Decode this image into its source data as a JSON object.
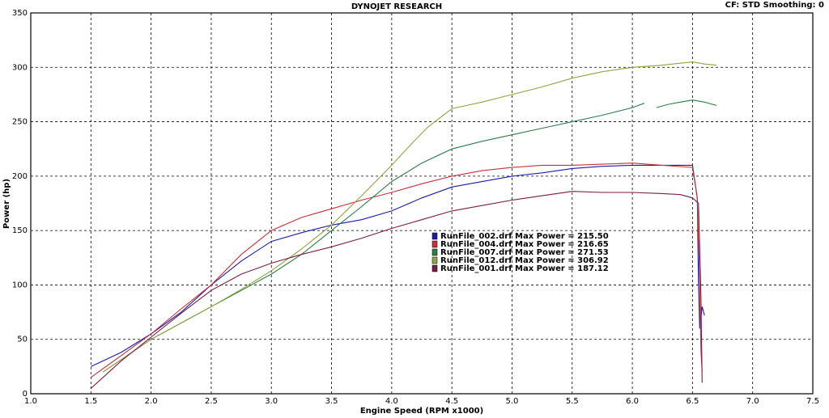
{
  "chart_data": {
    "type": "line",
    "title": "DYNOJET RESEARCH",
    "subtitle": "CF: STD  Smoothing: 0",
    "x_label": "Engine Speed (RPM x1000)",
    "y_label": "Power (hp)",
    "xlim": [
      1.0,
      7.5
    ],
    "xticks": [
      {
        "value": 1,
        "label": "1.0"
      },
      1.5,
      {
        "value": 2,
        "label": "2.0"
      },
      2.5,
      {
        "value": 3,
        "label": "3.0"
      },
      3.5,
      {
        "value": 4,
        "label": "4.0"
      },
      4.5,
      {
        "value": 5,
        "label": "5.0"
      },
      5.5,
      {
        "value": 6,
        "label": "6.0"
      },
      6.5,
      {
        "value": 7,
        "label": "7.0"
      },
      7.5
    ],
    "ylim": [
      0,
      350
    ],
    "yticks": [
      0,
      50,
      100,
      150,
      200,
      250,
      300,
      350
    ],
    "grid": true,
    "series": [
      {
        "name": "RunFile_002.drf Max Power = 215.50",
        "color": "#1c1ca8",
        "x": [
          1.5,
          1.75,
          2.0,
          2.25,
          2.5,
          2.75,
          3.0,
          3.25,
          3.5,
          3.75,
          4.0,
          4.25,
          4.5,
          4.75,
          5.0,
          5.25,
          5.5,
          5.75,
          6.0,
          6.25,
          6.5,
          6.54,
          6.55,
          6.56,
          6.58,
          6.6
        ],
        "values": [
          25,
          38,
          55,
          75,
          100,
          122,
          140,
          148,
          155,
          160,
          168,
          180,
          190,
          195,
          200,
          203,
          207,
          209,
          210,
          210,
          210,
          180,
          100,
          60,
          80,
          72
        ]
      },
      {
        "name": "RunFile_004.drf Max Power = 216.65",
        "color": "#c8303a",
        "x": [
          1.5,
          1.75,
          2.0,
          2.25,
          2.5,
          2.75,
          3.0,
          3.25,
          3.5,
          3.75,
          4.0,
          4.25,
          4.5,
          4.75,
          5.0,
          5.25,
          5.5,
          5.75,
          6.0,
          6.25,
          6.5,
          6.54,
          6.56,
          6.57,
          6.58
        ],
        "values": [
          15,
          35,
          55,
          78,
          100,
          128,
          150,
          162,
          170,
          178,
          185,
          193,
          200,
          205,
          208,
          210,
          210,
          211,
          212,
          210,
          208,
          180,
          100,
          40,
          20
        ]
      },
      {
        "name": "RunFile_007.drf Max Power = 271.53",
        "color": "#2e7d46",
        "x": [
          1.6,
          1.8,
          2.0,
          2.25,
          2.5,
          2.75,
          3.0,
          3.25,
          3.5,
          3.75,
          4.0,
          4.25,
          4.5,
          4.75,
          5.0,
          5.25,
          5.5,
          5.75,
          6.0,
          6.1,
          6.15,
          6.2,
          6.3,
          6.4,
          6.5,
          6.6,
          6.7
        ],
        "values": [
          20,
          35,
          50,
          65,
          80,
          95,
          110,
          128,
          150,
          172,
          195,
          212,
          225,
          232,
          238,
          244,
          250,
          256,
          263,
          267,
          null,
          263,
          266,
          268,
          270,
          268,
          265
        ]
      },
      {
        "name": "RunFile_012.drf Max Power = 306.92",
        "color": "#8fa444",
        "x": [
          1.6,
          1.8,
          2.0,
          2.25,
          2.5,
          2.75,
          3.0,
          3.25,
          3.5,
          3.75,
          4.0,
          4.15,
          4.3,
          4.5,
          4.75,
          5.0,
          5.25,
          5.5,
          5.75,
          6.0,
          6.25,
          6.5,
          6.6,
          6.7
        ],
        "values": [
          20,
          35,
          50,
          65,
          80,
          96,
          113,
          133,
          155,
          182,
          210,
          228,
          245,
          262,
          268,
          275,
          282,
          290,
          296,
          300,
          302,
          305,
          303,
          302
        ]
      },
      {
        "name": "RunFile_001.drf Max Power = 187.12",
        "color": "#7a1c44",
        "x": [
          1.5,
          1.75,
          2.0,
          2.25,
          2.5,
          2.75,
          3.0,
          3.25,
          3.5,
          3.75,
          4.0,
          4.25,
          4.5,
          4.75,
          5.0,
          5.25,
          5.5,
          5.75,
          6.0,
          6.25,
          6.4,
          6.5,
          6.55,
          6.57,
          6.58
        ],
        "values": [
          5,
          30,
          52,
          74,
          95,
          110,
          120,
          128,
          135,
          143,
          152,
          160,
          168,
          173,
          178,
          182,
          186,
          185,
          185,
          184,
          183,
          180,
          175,
          90,
          10
        ]
      }
    ]
  }
}
